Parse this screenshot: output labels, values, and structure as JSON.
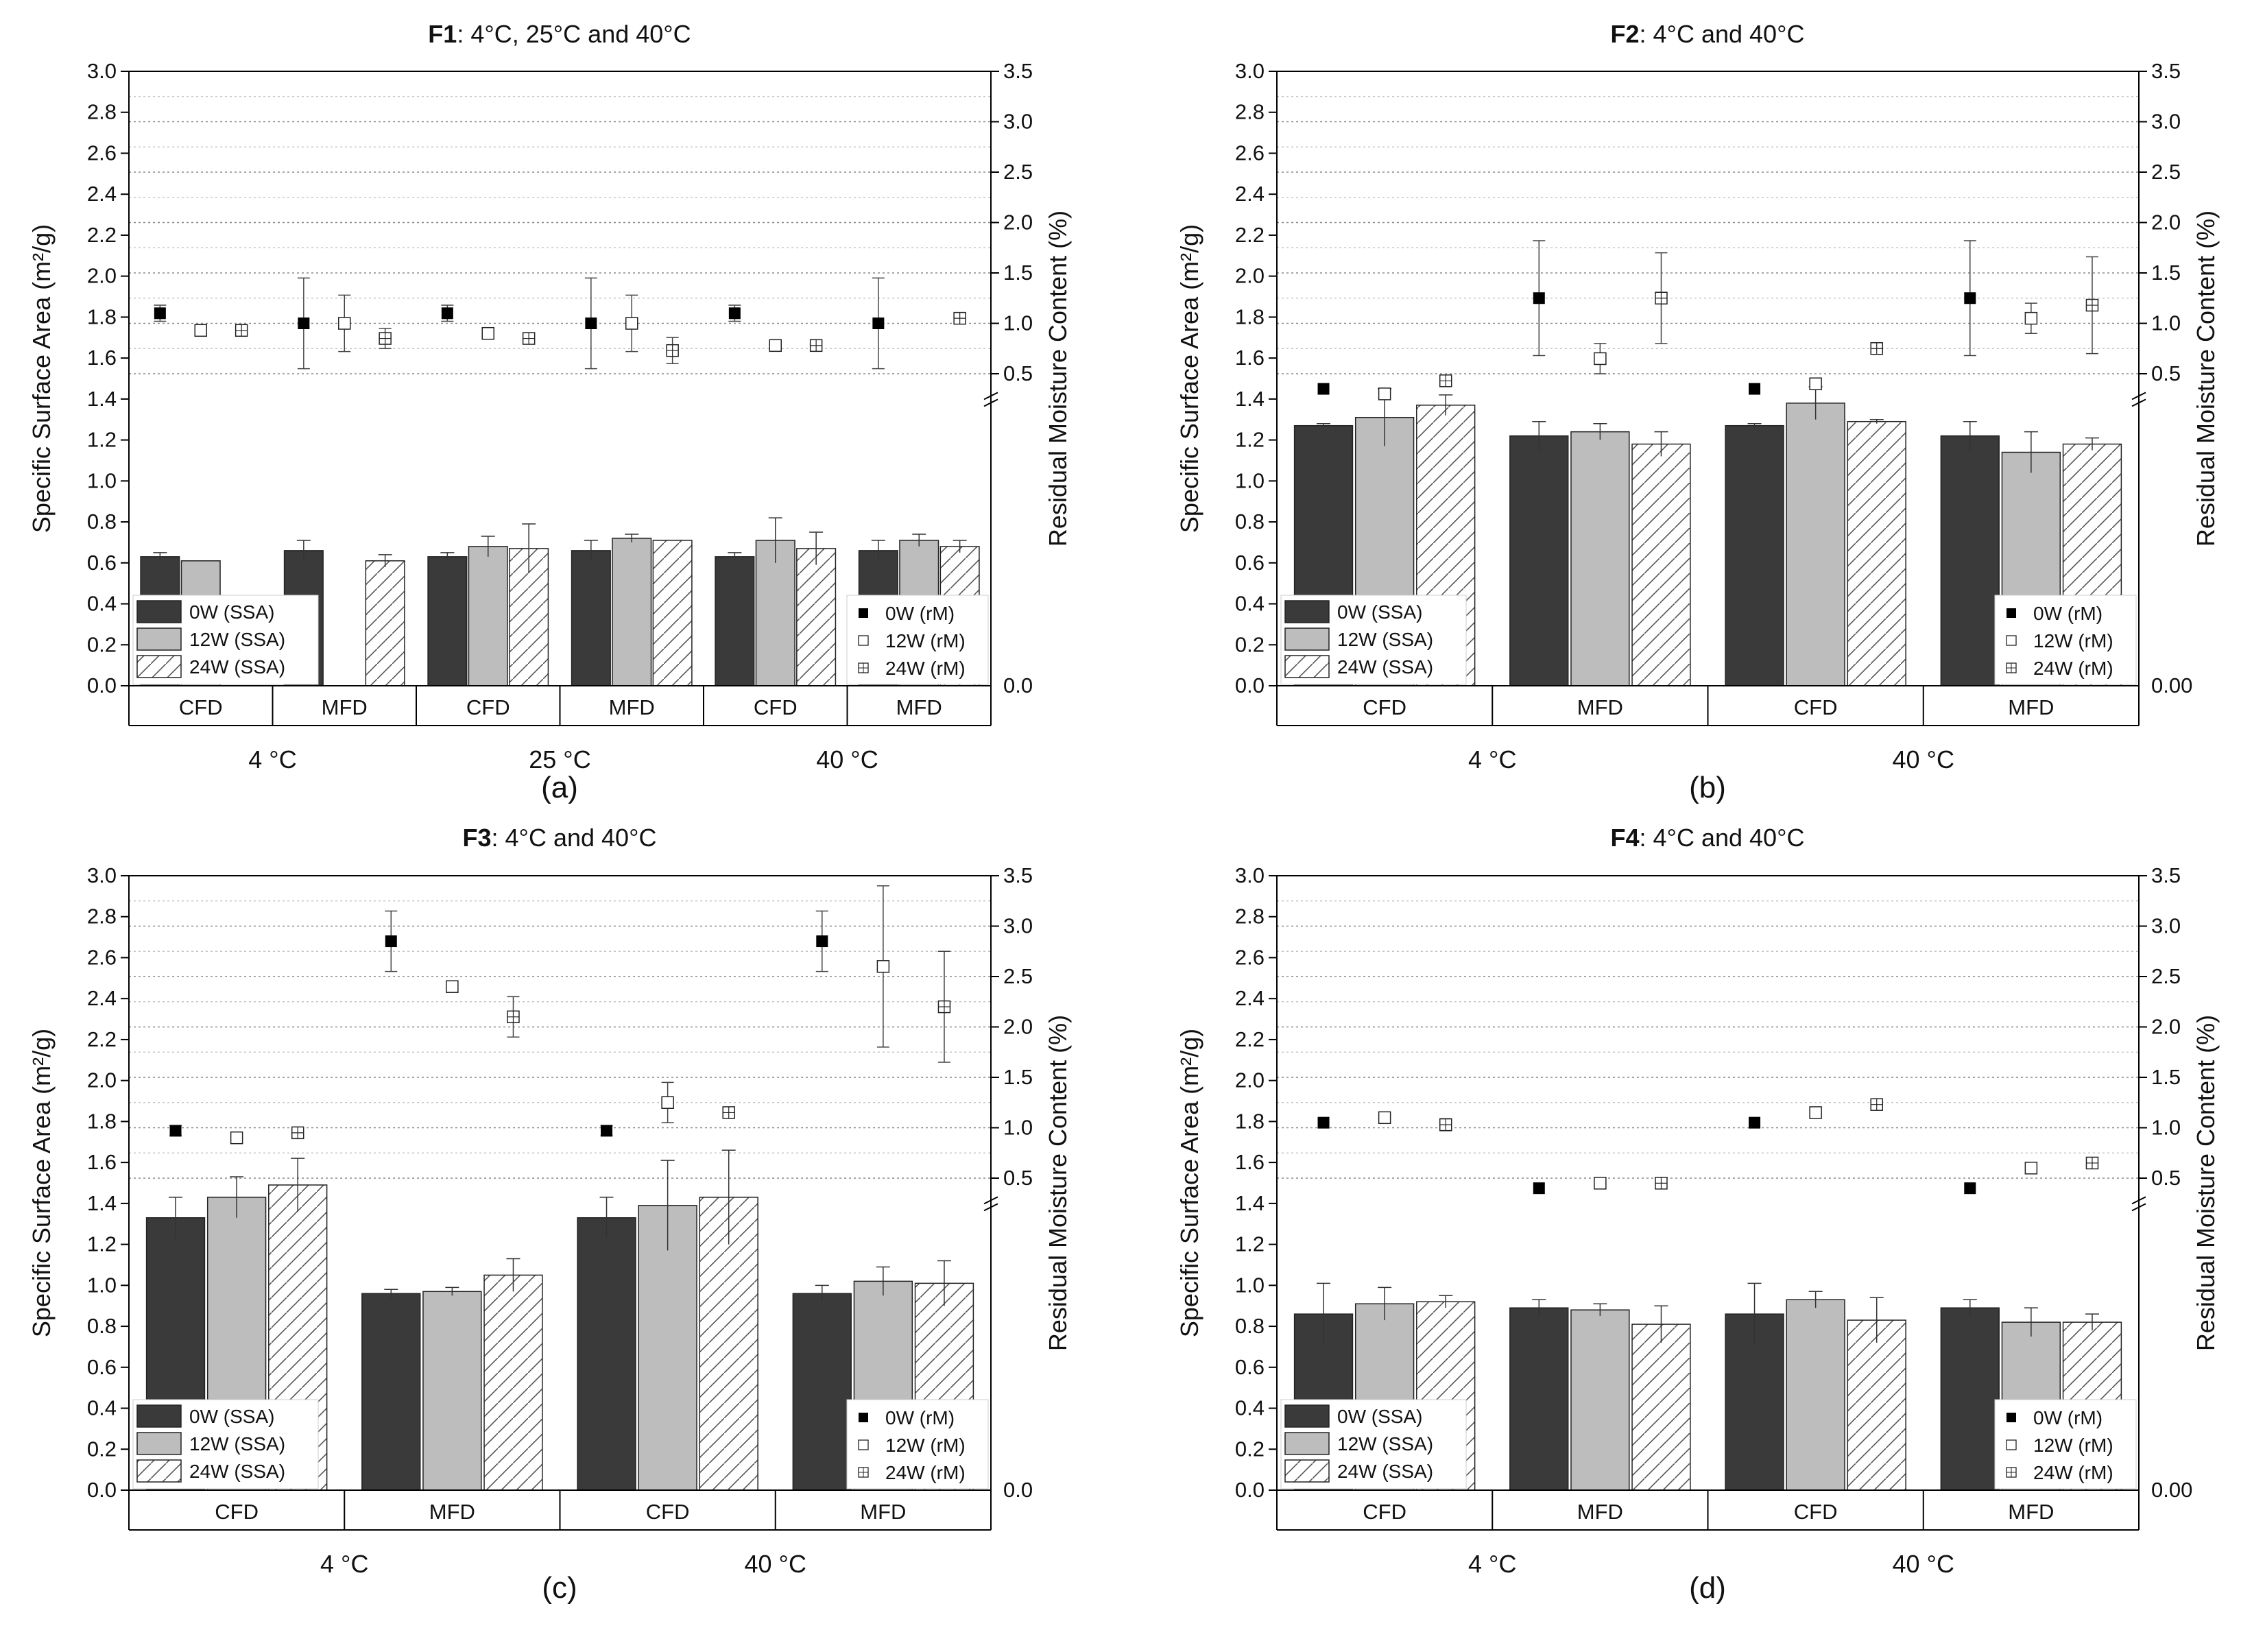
{
  "colors": {
    "ssa_0w": "#3a3a3a",
    "ssa_12w": "#bdbdbd",
    "ssa_24w": "#ffffff",
    "axis": "#000000",
    "grid": "#888888"
  },
  "axes_common": {
    "ylabel_left": "Specific Surface Area (m²/g)",
    "ylabel_right": "Residual Moisture Content (%)",
    "left_ticks": [
      "0.0",
      "0.2",
      "0.4",
      "0.6",
      "0.8",
      "1.0",
      "1.2",
      "1.4",
      "1.6",
      "1.8",
      "2.0",
      "2.2",
      "2.4",
      "2.6",
      "2.8",
      "3.0"
    ],
    "right_ticks_upper": [
      "0.5",
      "1.0",
      "1.5",
      "2.0",
      "2.5",
      "3.0",
      "3.5"
    ]
  },
  "chart_data": [
    {
      "type": "bar",
      "panel": "(a)",
      "title_bold": "F1",
      "title_rest": ": 4°C, 25°C and 40°C",
      "right_zero_label": "0.0",
      "groups": [
        {
          "temp": "4 °C",
          "methods": [
            "CFD",
            "MFD"
          ]
        },
        {
          "temp": "25 °C",
          "methods": [
            "CFD",
            "MFD"
          ]
        },
        {
          "temp": "40 °C",
          "methods": [
            "CFD",
            "MFD"
          ]
        }
      ],
      "ylim": [
        0,
        3.0
      ],
      "rm_ylim_upper": [
        0.3,
        3.5
      ],
      "series": [
        {
          "name": "0W (SSA)",
          "values": [
            0.63,
            0.66,
            0.63,
            0.66,
            0.63,
            0.66
          ],
          "errors": [
            0.02,
            0.05,
            0.02,
            0.05,
            0.02,
            0.05
          ]
        },
        {
          "name": "12W (SSA)",
          "values": [
            0.61,
            null,
            0.68,
            0.72,
            0.71,
            0.71
          ],
          "errors": [
            0.0,
            0.0,
            0.05,
            0.02,
            0.11,
            0.03
          ]
        },
        {
          "name": "24W (SSA)",
          "values": [
            null,
            0.61,
            0.67,
            0.71,
            0.67,
            0.68
          ],
          "errors": [
            0.0,
            0.03,
            0.12,
            0.0,
            0.08,
            0.03
          ]
        }
      ],
      "rm_series": [
        {
          "name": "0W (rM)",
          "values": [
            1.1,
            1.0,
            1.1,
            1.0,
            1.1,
            1.0
          ],
          "errors": [
            0.08,
            0.45,
            0.08,
            0.45,
            0.08,
            0.45
          ]
        },
        {
          "name": "12W (rM)",
          "values": [
            0.93,
            1.0,
            0.9,
            1.0,
            0.78,
            null
          ],
          "errors": [
            0.03,
            0.28,
            0.03,
            0.28,
            0.04,
            0.0
          ]
        },
        {
          "name": "24W (rM)",
          "values": [
            0.93,
            0.85,
            0.85,
            0.73,
            0.78,
            1.05
          ],
          "errors": [
            0.03,
            0.1,
            0.05,
            0.13,
            0.03,
            0.05
          ]
        }
      ],
      "legend_left": [
        "0W (SSA)",
        "12W (SSA)",
        "24W (SSA)"
      ],
      "legend_right": [
        "0W (rM)",
        "12W (rM)",
        "24W (rM)"
      ]
    },
    {
      "type": "bar",
      "panel": "(b)",
      "title_bold": "F2",
      "title_rest": ": 4°C and 40°C",
      "right_zero_label": "0.00",
      "groups": [
        {
          "temp": "4 °C",
          "methods": [
            "CFD",
            "MFD"
          ]
        },
        {
          "temp": "40 °C",
          "methods": [
            "CFD",
            "MFD"
          ]
        }
      ],
      "ylim": [
        0,
        3.0
      ],
      "rm_ylim_upper": [
        0.3,
        3.5
      ],
      "series": [
        {
          "name": "0W (SSA)",
          "values": [
            1.27,
            1.22,
            1.27,
            1.22
          ],
          "errors": [
            0.01,
            0.07,
            0.01,
            0.07
          ]
        },
        {
          "name": "12W (SSA)",
          "values": [
            1.31,
            1.24,
            1.38,
            1.14
          ],
          "errors": [
            0.14,
            0.04,
            0.08,
            0.1
          ]
        },
        {
          "name": "24W (SSA)",
          "values": [
            1.37,
            1.18,
            1.29,
            1.18
          ],
          "errors": [
            0.05,
            0.06,
            0.01,
            0.03
          ]
        }
      ],
      "rm_series": [
        {
          "name": "0W (rM)",
          "values": [
            0.35,
            1.25,
            0.35,
            1.25
          ],
          "errors": [
            0.0,
            0.57,
            0.0,
            0.57
          ]
        },
        {
          "name": "12W (rM)",
          "values": [
            0.3,
            0.65,
            0.4,
            1.05
          ],
          "errors": [
            0.0,
            0.15,
            0.03,
            0.15
          ]
        },
        {
          "name": "24W (rM)",
          "values": [
            0.43,
            1.25,
            0.75,
            1.18
          ],
          "errors": [
            0.02,
            0.45,
            0.04,
            0.48
          ]
        }
      ],
      "legend_left": [
        "0W (SSA)",
        "12W (SSA)",
        "24W (SSA)"
      ],
      "legend_right": [
        "0W (rM)",
        "12W (rM)",
        "24W (rM)"
      ]
    },
    {
      "type": "bar",
      "panel": "(c)",
      "title_bold": "F3",
      "title_rest": ": 4°C and 40°C",
      "right_zero_label": "0.0",
      "groups": [
        {
          "temp": "4 °C",
          "methods": [
            "CFD",
            "MFD"
          ]
        },
        {
          "temp": "40 °C",
          "methods": [
            "CFD",
            "MFD"
          ]
        }
      ],
      "ylim": [
        0,
        3.0
      ],
      "rm_ylim_upper": [
        0.3,
        3.5
      ],
      "series": [
        {
          "name": "0W (SSA)",
          "values": [
            1.33,
            0.96,
            1.33,
            0.96
          ],
          "errors": [
            0.1,
            0.02,
            0.1,
            0.04
          ]
        },
        {
          "name": "12W (SSA)",
          "values": [
            1.43,
            0.97,
            1.39,
            1.02
          ],
          "errors": [
            0.1,
            0.02,
            0.22,
            0.07
          ]
        },
        {
          "name": "24W (SSA)",
          "values": [
            1.49,
            1.05,
            1.43,
            1.01
          ],
          "errors": [
            0.13,
            0.08,
            0.23,
            0.11
          ]
        }
      ],
      "rm_series": [
        {
          "name": "0W (rM)",
          "values": [
            0.97,
            2.85,
            0.97,
            2.85
          ],
          "errors": [
            0.05,
            0.3,
            0.05,
            0.3
          ]
        },
        {
          "name": "12W (rM)",
          "values": [
            0.9,
            2.4,
            1.25,
            2.6
          ],
          "errors": [
            0.0,
            0.0,
            0.2,
            0.8
          ]
        },
        {
          "name": "24W (rM)",
          "values": [
            0.95,
            2.1,
            1.15,
            2.2
          ],
          "errors": [
            0.03,
            0.2,
            0.05,
            0.55
          ]
        }
      ],
      "legend_left": [
        "0W (SSA)",
        "12W (SSA)",
        "24W (SSA)"
      ],
      "legend_right": [
        "0W (rM)",
        "12W (rM)",
        "24W (rM)"
      ]
    },
    {
      "type": "bar",
      "panel": "(d)",
      "title_bold": "F4",
      "title_rest": ": 4°C and 40°C",
      "right_zero_label": "0.00",
      "groups": [
        {
          "temp": "4 °C",
          "methods": [
            "CFD",
            "MFD"
          ]
        },
        {
          "temp": "40 °C",
          "methods": [
            "CFD",
            "MFD"
          ]
        }
      ],
      "ylim": [
        0,
        3.0
      ],
      "rm_ylim_upper": [
        0.3,
        3.5
      ],
      "series": [
        {
          "name": "0W (SSA)",
          "values": [
            0.86,
            0.89,
            0.86,
            0.89
          ],
          "errors": [
            0.15,
            0.04,
            0.15,
            0.04
          ]
        },
        {
          "name": "12W (SSA)",
          "values": [
            0.91,
            0.88,
            0.93,
            0.82
          ],
          "errors": [
            0.08,
            0.03,
            0.04,
            0.07
          ]
        },
        {
          "name": "24W (SSA)",
          "values": [
            0.92,
            0.81,
            0.83,
            0.82
          ],
          "errors": [
            0.03,
            0.09,
            0.11,
            0.04
          ]
        }
      ],
      "rm_series": [
        {
          "name": "0W (rM)",
          "values": [
            1.05,
            0.4,
            1.05,
            0.4
          ],
          "errors": [
            0.0,
            0.0,
            0.0,
            0.0
          ]
        },
        {
          "name": "12W (rM)",
          "values": [
            1.1,
            0.45,
            1.15,
            0.6
          ],
          "errors": [
            0.02,
            0.02,
            0.03,
            0.02
          ]
        },
        {
          "name": "24W (rM)",
          "values": [
            1.03,
            0.45,
            1.23,
            0.65
          ],
          "errors": [
            0.06,
            0.04,
            0.03,
            0.02
          ]
        }
      ],
      "legend_left": [
        "0W (SSA)",
        "12W (SSA)",
        "24W (SSA)"
      ],
      "legend_right": [
        "0W (rM)",
        "12W (rM)",
        "24W (rM)"
      ]
    }
  ]
}
